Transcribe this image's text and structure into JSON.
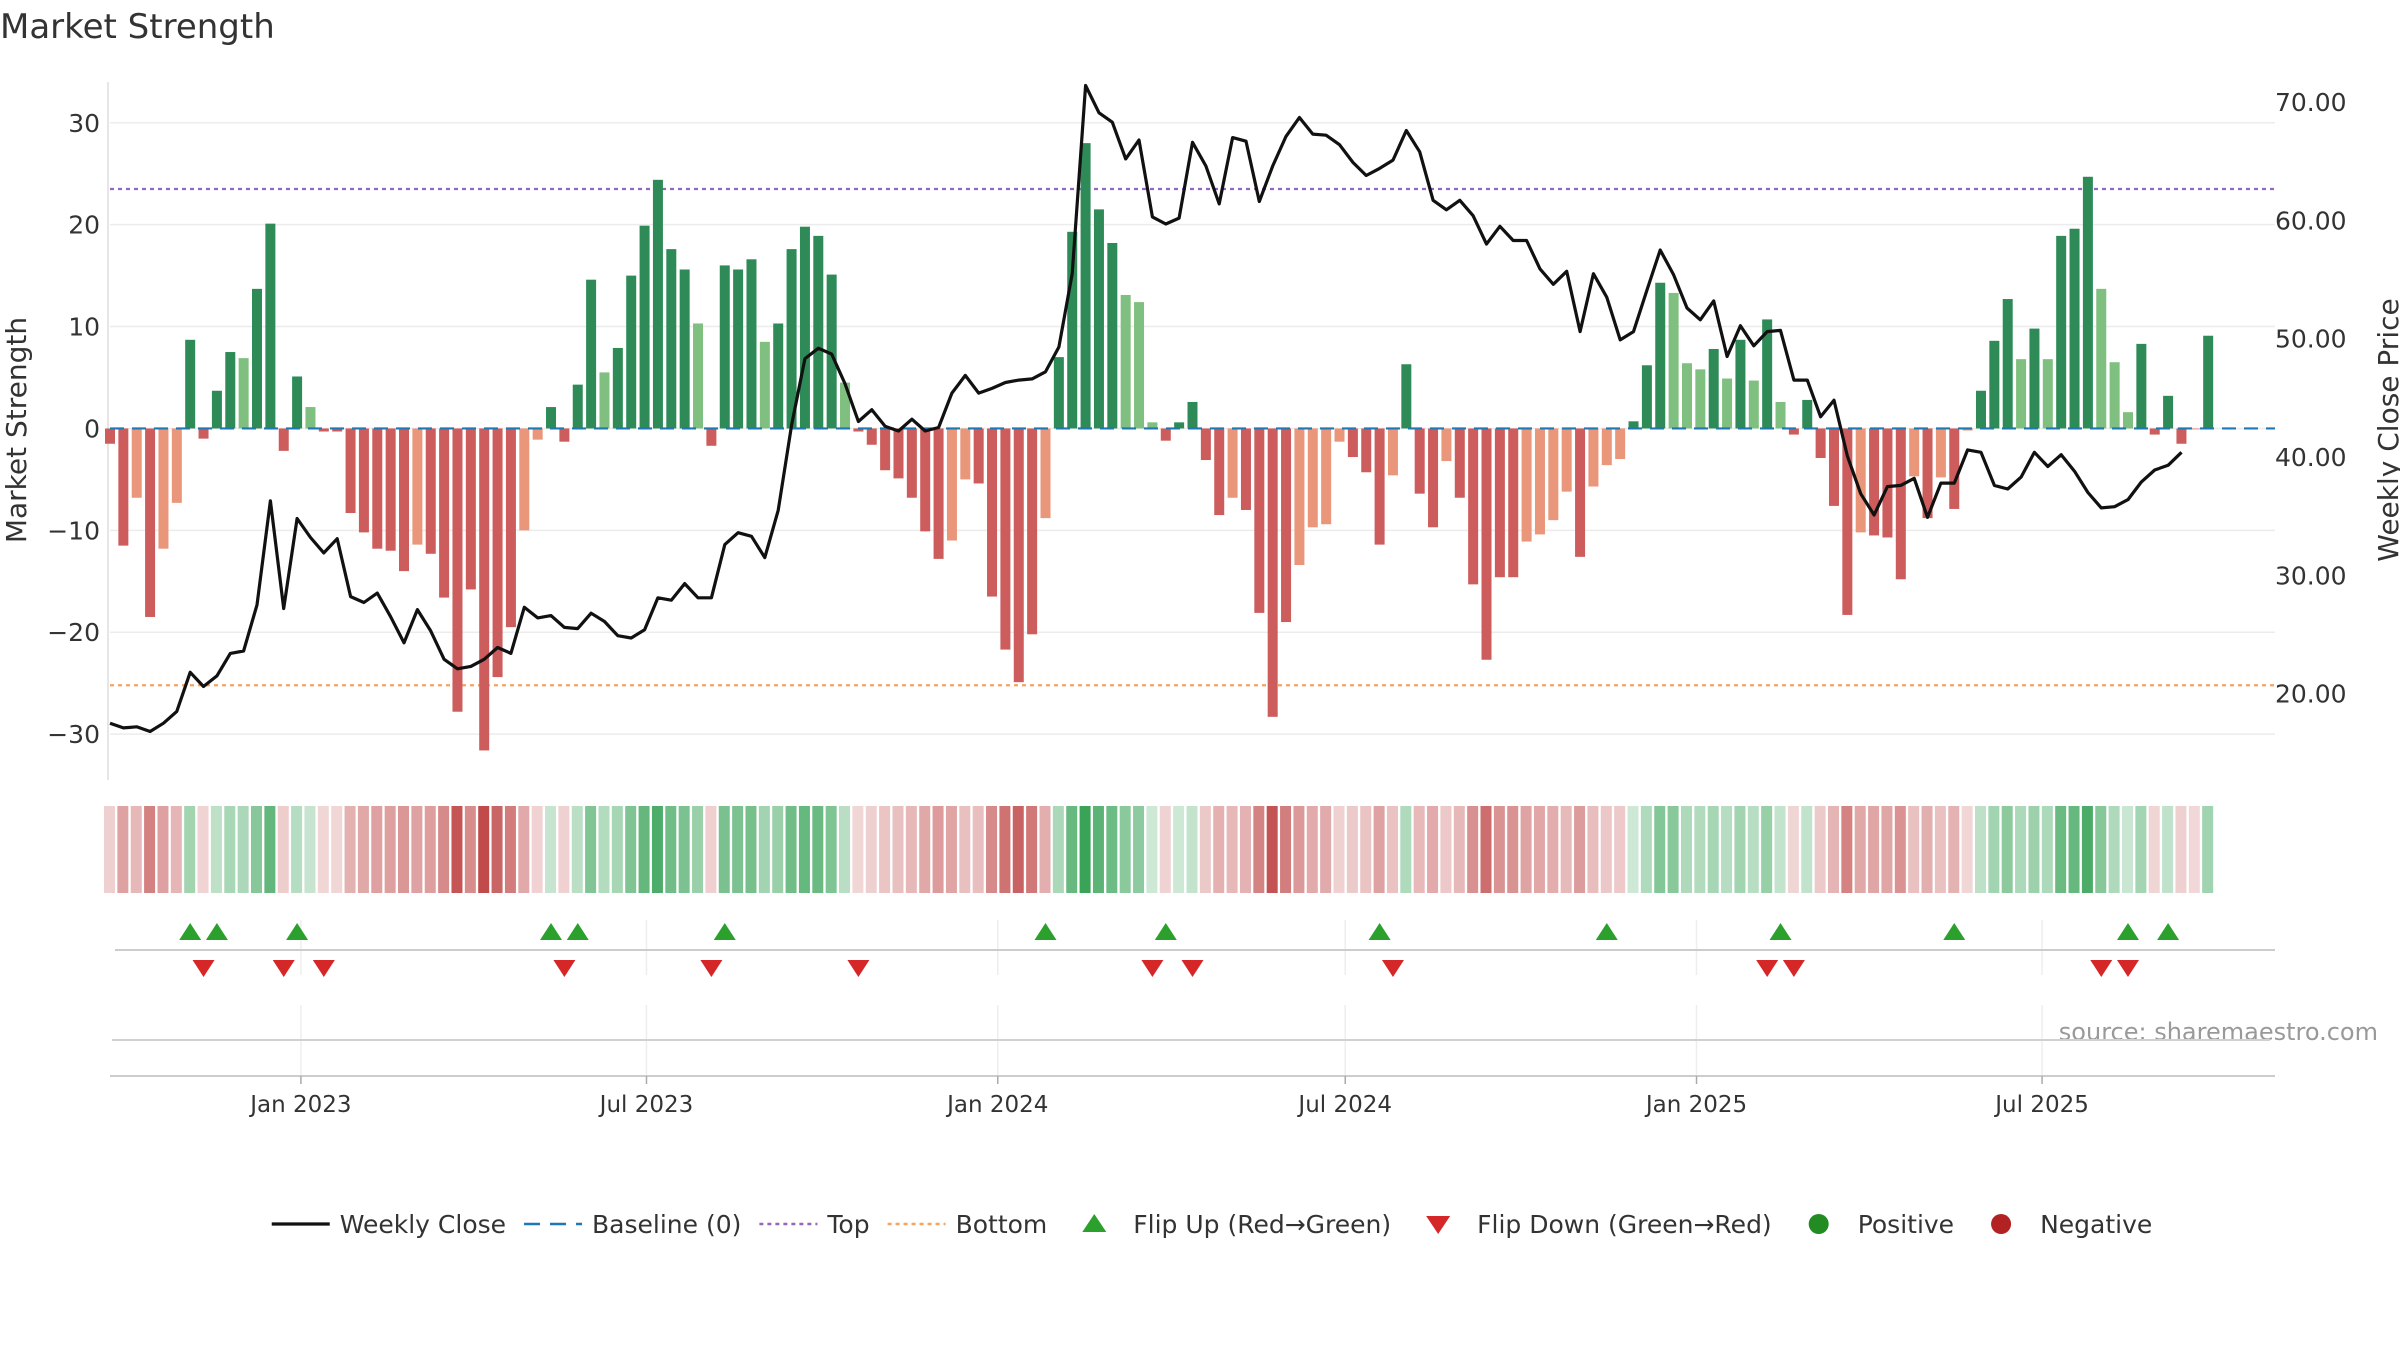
{
  "chart_data": {
    "type": "bar",
    "title": "Market Strength",
    "ylabel_left": "Market Strength",
    "ylabel_right": "Weekly Close Price",
    "source": "source: sharemaestro.com",
    "left_ylim": [
      -34.5,
      34
    ],
    "left_ticks": [
      30,
      20,
      10,
      0,
      -10,
      -20,
      -30
    ],
    "left_tick_labels": [
      "30",
      "20",
      "10",
      "0",
      "−10",
      "−20",
      "−30"
    ],
    "right_ylim": [
      12.7,
      71.7
    ],
    "right_ticks": [
      70,
      60,
      50,
      40,
      30,
      20
    ],
    "right_tick_labels": [
      "70.00",
      "60.00",
      "50.00",
      "40.00",
      "30.00",
      "20.00"
    ],
    "x_start": "2022-09-23",
    "x_end": "2025-10-31",
    "x_ticks": [
      "2023-01-01",
      "2023-07-01",
      "2024-01-01",
      "2024-07-01",
      "2025-01-01",
      "2025-07-01"
    ],
    "x_tick_labels": [
      "Jan 2023",
      "Jul 2023",
      "Jan 2024",
      "Jul 2024",
      "Jan 2025",
      "Jul 2025"
    ],
    "top_line": 23.5,
    "bottom_line": -25.2,
    "baseline": 0,
    "colors": {
      "strong_green": "#2e8b57",
      "light_green": "#7fbf7f",
      "strong_red": "#cd5c5c",
      "light_red": "#e9967a",
      "close_line": "#111111",
      "baseline": "#1f77b4",
      "top": "#9467bd",
      "bottom": "#f4a460",
      "flip_up": "#2ca02c",
      "flip_down": "#d62728",
      "positive": "#228b22",
      "negative": "#b22222"
    },
    "series": [
      {
        "name": "Market Strength",
        "start": "2022-09-23",
        "values": [
          -1.5,
          -11.5,
          -6.8,
          -18.5,
          -11.8,
          -7.3,
          8.7,
          -1,
          3.7,
          7.5,
          6.9,
          13.7,
          20.1,
          -2.2,
          5.1,
          2.1,
          -0.3,
          -0.3,
          -8.3,
          -10.2,
          -11.8,
          -12,
          -14,
          -11.4,
          -12.3,
          -16.6,
          -27.8,
          -15.8,
          -31.6,
          -24.4,
          -19.5,
          -10,
          -1.1,
          2.1,
          -1.3,
          4.3,
          14.6,
          5.5,
          7.9,
          15,
          19.9,
          24.4,
          17.6,
          15.6,
          10.3,
          -1.7,
          16,
          15.6,
          16.6,
          8.5,
          10.3,
          17.6,
          19.8,
          18.9,
          15.1,
          4.5,
          -0.3,
          -1.6,
          -4.1,
          -4.9,
          -6.8,
          -10.1,
          -12.8,
          -11,
          -5,
          -5.4,
          -16.5,
          -21.7,
          -24.9,
          -20.2,
          -8.8,
          7,
          19.3,
          28,
          21.5,
          18.2,
          13.1,
          12.4,
          0.6,
          -1.2,
          0.6,
          2.6,
          -3.1,
          -8.5,
          -6.8,
          -8,
          -18.1,
          -28.3,
          -19,
          -13.4,
          -9.7,
          -9.4,
          -1.3,
          -2.8,
          -4.3,
          -11.4,
          -4.6,
          6.3,
          -6.4,
          -9.7,
          -3.2,
          -6.8,
          -15.3,
          -22.7,
          -14.6,
          -14.6,
          -11.1,
          -10.4,
          -9,
          -6.2,
          -12.6,
          -5.7,
          -3.6,
          -3,
          0.7,
          6.2,
          14.3,
          13.3,
          6.4,
          5.8,
          7.8,
          4.9,
          8.7,
          4.7,
          10.7,
          2.6,
          -0.6,
          2.8,
          -2.9,
          -7.6,
          -18.3,
          -10.2,
          -10.5,
          -10.7,
          -14.8,
          -4.7,
          -8.8,
          -4.8,
          -7.9,
          -0.2,
          3.7,
          8.6,
          12.7,
          6.8,
          9.8,
          6.8,
          18.9,
          19.6,
          24.7,
          13.7,
          6.5,
          1.6,
          8.3,
          -0.6,
          3.2,
          -1.5,
          -0.1,
          9.1
        ]
      },
      {
        "name": "Weekly Close",
        "start": "2022-09-23",
        "values": [
          17.5,
          17.1,
          17.2,
          16.8,
          17.5,
          18.5,
          21.8,
          20.6,
          21.5,
          23.4,
          23.6,
          27.5,
          36.3,
          27.2,
          34.8,
          33.2,
          31.9,
          33.1,
          28.2,
          27.7,
          28.5,
          26.5,
          24.3,
          27.1,
          25.3,
          22.9,
          22.1,
          22.3,
          22.9,
          23.9,
          23.4,
          27.3,
          26.4,
          26.6,
          25.6,
          25.5,
          26.8,
          26.1,
          24.9,
          24.7,
          25.4,
          28.1,
          27.9,
          29.3,
          28.1,
          28.1,
          32.6,
          33.6,
          33.3,
          31.5,
          35.5,
          42.7,
          48.3,
          49.2,
          48.7,
          46.2,
          43,
          44,
          42.6,
          42.2,
          43.2,
          42.2,
          42.5,
          45.4,
          46.9,
          45.4,
          45.8,
          46.3,
          46.5,
          46.6,
          47.2,
          49.3,
          55.5,
          71.4,
          69.1,
          68.3,
          65.2,
          66.8,
          60.3,
          59.7,
          60.2,
          66.6,
          64.6,
          61.4,
          67,
          66.7,
          61.6,
          64.6,
          67.1,
          68.7,
          67.3,
          67.2,
          66.4,
          64.9,
          63.8,
          64.4,
          65.1,
          67.6,
          65.8,
          61.7,
          60.9,
          61.7,
          60.4,
          58,
          59.5,
          58.3,
          58.3,
          55.9,
          54.6,
          55.7,
          50.6,
          55.5,
          53.5,
          49.9,
          50.6,
          54.1,
          57.5,
          55.4,
          52.6,
          51.6,
          53.2,
          48.5,
          51.1,
          49.4,
          50.6,
          50.7,
          46.5,
          46.5,
          43.4,
          44.8,
          40.1,
          36.9,
          35.1,
          37.5,
          37.6,
          38.2,
          34.9,
          37.8,
          37.8,
          40.6,
          40.4,
          37.6,
          37.3,
          38.3,
          40.4,
          39.2,
          40.2,
          38.8,
          37,
          35.7,
          35.8,
          36.4,
          37.9,
          38.9,
          39.3,
          40.4
        ]
      }
    ],
    "flip_up_weeks": [
      6,
      8,
      14,
      33,
      35,
      46,
      70,
      79,
      95,
      112,
      125,
      138,
      151,
      154
    ],
    "flip_down_weeks": [
      7,
      13,
      16,
      34,
      45,
      56,
      78,
      81,
      96,
      124,
      126,
      149,
      151
    ],
    "legend": [
      {
        "label": "Weekly Close",
        "symbol": "line",
        "color": "#111111"
      },
      {
        "label": "Baseline (0)",
        "symbol": "dash",
        "color": "#1f77b4"
      },
      {
        "label": "Top",
        "symbol": "dot",
        "color": "#9467bd"
      },
      {
        "label": "Bottom",
        "symbol": "dot",
        "color": "#f4a460"
      },
      {
        "label": "Flip Up (Red→Green)",
        "symbol": "tri-up",
        "color": "#2ca02c"
      },
      {
        "label": "Flip Down (Green→Red)",
        "symbol": "tri-down",
        "color": "#d62728"
      },
      {
        "label": "Positive",
        "symbol": "circle",
        "color": "#228b22"
      },
      {
        "label": "Negative",
        "symbol": "circle",
        "color": "#b22222"
      }
    ]
  }
}
